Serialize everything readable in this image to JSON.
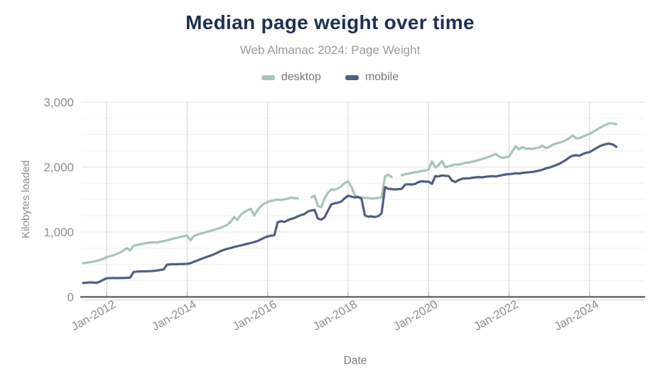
{
  "header": {
    "title": "Median page weight over time",
    "subtitle": "Web Almanac 2024: Page Weight"
  },
  "legend": [
    {
      "label": "desktop",
      "color": "#a6c5b3"
    },
    {
      "label": "mobile",
      "color": "#4f5e81"
    }
  ],
  "chart_data": {
    "type": "line",
    "title": "Median page weight over time",
    "subtitle": "Web Almanac 2024: Page Weight",
    "xlabel": "Date",
    "ylabel": "Kilobytes loaded",
    "ylim": [
      0,
      3000
    ],
    "y_ticks": [
      {
        "value": 0,
        "label": "0"
      },
      {
        "value": 1000,
        "label": "1,000"
      },
      {
        "value": 2000,
        "label": "2,000"
      },
      {
        "value": 3000,
        "label": "3,000"
      }
    ],
    "y_minor_step": 250,
    "x_ticks": [
      {
        "year": 2012,
        "label": "Jan-2012"
      },
      {
        "year": 2014,
        "label": "Jan-2014"
      },
      {
        "year": 2016,
        "label": "Jan-2016"
      },
      {
        "year": 2018,
        "label": "Jan-2018"
      },
      {
        "year": 2020,
        "label": "Jan-2020"
      },
      {
        "year": 2022,
        "label": "Jan-2022"
      },
      {
        "year": 2024,
        "label": "Jan-2024"
      }
    ],
    "grid": true,
    "legend_position": "top",
    "interval": "month",
    "series": [
      {
        "name": "desktop",
        "color": "#a6c5b3",
        "start": "2011-06",
        "values": [
          520,
          527,
          534,
          543,
          554,
          568,
          588,
          614,
          628,
          642,
          660,
          684,
          714,
          752,
          716,
          788,
          799,
          810,
          821,
          831,
          836,
          842,
          838,
          849,
          861,
          871,
          884,
          899,
          912,
          924,
          935,
          945,
          872,
          936,
          958,
          974,
          989,
          1004,
          1018,
          1032,
          1048,
          1066,
          1088,
          1110,
          1160,
          1230,
          1185,
          1265,
          1305,
          1335,
          1358,
          1252,
          1338,
          1398,
          1438,
          1462,
          1478,
          1490,
          1499,
          1494,
          1504,
          1514,
          1530,
          1524,
          1519,
          null,
          null,
          null,
          1532,
          1560,
          1398,
          1382,
          1518,
          1604,
          1658,
          1650,
          1672,
          1706,
          1756,
          1781,
          1694,
          1568,
          1532,
          1537,
          1522,
          1526,
          1514,
          1520,
          1526,
          1536,
          1856,
          1882,
          1846,
          null,
          null,
          1874,
          1890,
          1900,
          1911,
          1921,
          1930,
          1939,
          1946,
          1962,
          2086,
          1992,
          2030,
          2094,
          1996,
          2012,
          2026,
          2042,
          2036,
          2052,
          2066,
          2072,
          2082,
          2096,
          2110,
          2124,
          2140,
          2156,
          2180,
          2204,
          2162,
          2142,
          2152,
          2162,
          2246,
          2322,
          2272,
          2310,
          2282,
          2286,
          2280,
          2292,
          2302,
          2330,
          2292,
          2312,
          2344,
          2362,
          2376,
          2392,
          2416,
          2446,
          2490,
          2440,
          2446,
          2470,
          2492,
          2512,
          2542,
          2572,
          2602,
          2632,
          2656,
          2676,
          2670,
          2660
        ]
      },
      {
        "name": "mobile",
        "color": "#4f5e81",
        "start": "2011-06",
        "values": [
          214,
          219,
          224,
          221,
          217,
          236,
          264,
          286,
          291,
          292,
          290,
          291,
          292,
          294,
          297,
          384,
          390,
          392,
          393,
          395,
          397,
          401,
          408,
          415,
          423,
          497,
          502,
          505,
          503,
          506,
          507,
          509,
          519,
          541,
          561,
          581,
          601,
          619,
          637,
          656,
          681,
          706,
          726,
          741,
          753,
          769,
          781,
          793,
          806,
          819,
          831,
          846,
          861,
          886,
          911,
          931,
          944,
          951,
          1151,
          1166,
          1156,
          1181,
          1201,
          1216,
          1241,
          1261,
          1276,
          1316,
          1331,
          1341,
          1206,
          1191,
          1226,
          1331,
          1426,
          1441,
          1451,
          1471,
          1521,
          1559,
          1546,
          1531,
          1541,
          1511,
          1256,
          1236,
          1241,
          1231,
          1246,
          1291,
          1691,
          1666,
          1661,
          1656,
          1661,
          1666,
          1731,
          1736,
          1731,
          1741,
          1771,
          1781,
          1776,
          1776,
          1741,
          1861,
          1856,
          1871,
          1866,
          1861,
          1791,
          1771,
          1801,
          1821,
          1826,
          1826,
          1836,
          1841,
          1846,
          1841,
          1851,
          1856,
          1861,
          1856,
          1866,
          1876,
          1886,
          1891,
          1896,
          1906,
          1901,
          1911,
          1916,
          1921,
          1926,
          1936,
          1946,
          1961,
          1981,
          1991,
          2011,
          2031,
          2051,
          2081,
          2111,
          2151,
          2176,
          2181,
          2176,
          2201,
          2221,
          2231,
          2261,
          2291,
          2321,
          2341,
          2356,
          2361,
          2346,
          2311
        ]
      }
    ]
  }
}
